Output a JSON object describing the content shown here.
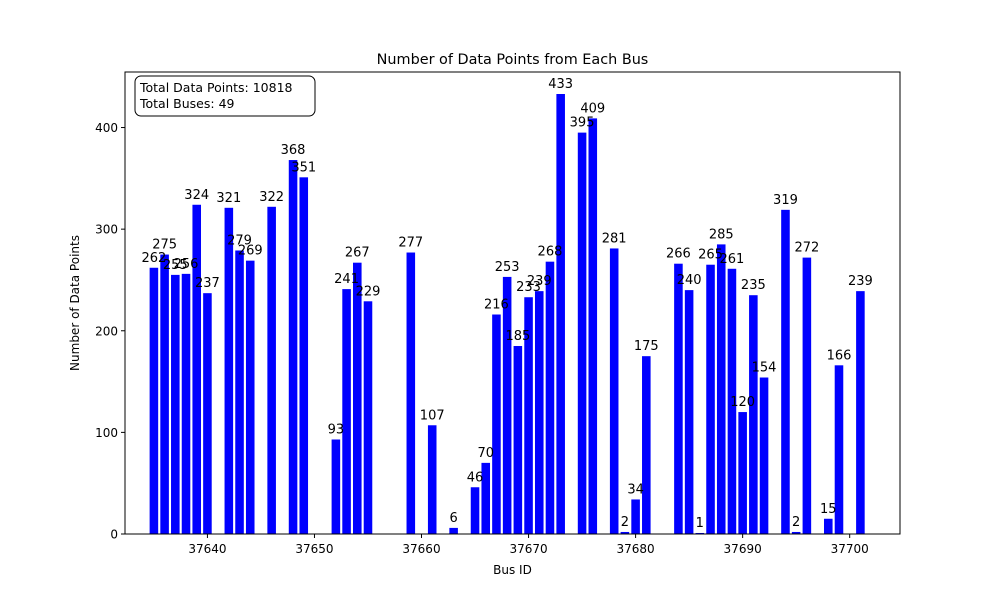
{
  "chart_data": {
    "type": "bar",
    "title": "Number of Data Points from Each Bus",
    "xlabel": "Bus ID",
    "ylabel": "Number of Data Points",
    "xlim": [
      37632.3,
      37704.7
    ],
    "ylim": [
      0,
      454.65
    ],
    "xticks": [
      37640,
      37650,
      37660,
      37670,
      37680,
      37690,
      37700
    ],
    "yticks": [
      0,
      100,
      200,
      300,
      400
    ],
    "bar_color": "#0000ff",
    "grid": false,
    "x": [
      37635,
      37636,
      37637,
      37638,
      37639,
      37640,
      37642,
      37643,
      37644,
      37646,
      37648,
      37649,
      37652,
      37653,
      37654,
      37655,
      37659,
      37661,
      37663,
      37665,
      37666,
      37667,
      37668,
      37669,
      37670,
      37671,
      37672,
      37673,
      37675,
      37676,
      37678,
      37679,
      37680,
      37681,
      37684,
      37685,
      37686,
      37687,
      37688,
      37689,
      37690,
      37691,
      37692,
      37694,
      37695,
      37696,
      37698,
      37699,
      37701
    ],
    "values": [
      262,
      275,
      255,
      256,
      324,
      237,
      321,
      279,
      269,
      322,
      368,
      351,
      93,
      241,
      267,
      229,
      277,
      107,
      6,
      46,
      70,
      216,
      253,
      185,
      233,
      239,
      268,
      433,
      395,
      409,
      281,
      2,
      34,
      175,
      266,
      240,
      1,
      265,
      285,
      261,
      120,
      235,
      154,
      319,
      2,
      272,
      15,
      166,
      239
    ],
    "labels": [
      "262",
      "275",
      "255",
      "256",
      "324",
      "237",
      "321",
      "279",
      "269",
      "322",
      "368",
      "351",
      "93",
      "241",
      "267",
      "229",
      "277",
      "107",
      "6",
      "46",
      "70",
      "216",
      "253",
      "185",
      "233",
      "239",
      "268",
      "433",
      "395",
      "409",
      "281",
      "2",
      "34",
      "175",
      "266",
      "240",
      "1",
      "265",
      "285",
      "261",
      "120",
      "235",
      "154",
      "319",
      "2",
      "272",
      "15",
      "166",
      "239"
    ],
    "annotation": [
      "Total Data Points: 10818",
      "Total Buses: 49"
    ],
    "annotation_placement": "top-left"
  }
}
